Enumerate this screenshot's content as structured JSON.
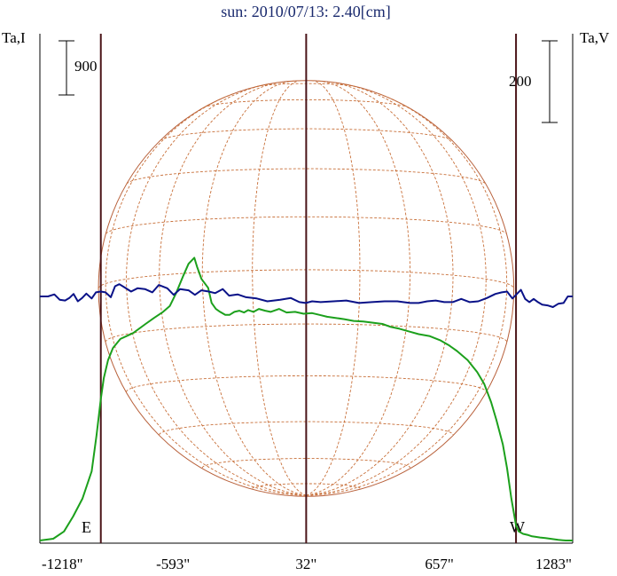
{
  "chart_data": {
    "type": "line",
    "title": "sun: 2010/07/13: 2.40[cm]",
    "left_axis_label": "Ta,I",
    "right_axis_label": "Ta,V",
    "left_scale_bar_label": "900",
    "right_scale_bar_label": "200",
    "x_unit": "arcsec",
    "x_tick_labels": [
      "-1218\"",
      "-593\"",
      "32\"",
      "657\"",
      "1283\""
    ],
    "x_ticks": [
      -1218,
      -593,
      32,
      657,
      1283
    ],
    "xlim": [
      -1218,
      1283
    ],
    "limb_labels": {
      "east": "E",
      "west": "W"
    },
    "limb_positions": [
      -932,
      1017
    ],
    "center_line": 32,
    "disk": {
      "center_x": 32,
      "radius": 975
    },
    "colors": {
      "intensity": "#1ca01c",
      "polarization": "#0a1288",
      "limb_lines": "#4a1418",
      "disk": "#b8603a",
      "grid": "#c8703a",
      "text": "#000000",
      "title": "#1a2a6e",
      "axis": "#000000"
    },
    "series": [
      {
        "name": "Ta,I",
        "x": [
          -1218,
          -1155,
          -1105,
          -1062,
          -1018,
          -975,
          -952,
          -932,
          -918,
          -898,
          -875,
          -840,
          -780,
          -722,
          -682,
          -640,
          -608,
          -580,
          -545,
          -520,
          -493,
          -480,
          -460,
          -428,
          -412,
          -392,
          -372,
          -348,
          -328,
          -305,
          -282,
          -260,
          -240,
          -215,
          -190,
          -160,
          -135,
          -95,
          -60,
          -20,
          20,
          60,
          95,
          130,
          170,
          210,
          255,
          300,
          345,
          390,
          430,
          470,
          520,
          560,
          610,
          660,
          700,
          740,
          790,
          835,
          868,
          900,
          925,
          955,
          975,
          995,
          1017,
          1030,
          1050,
          1075,
          1092,
          1110,
          1130,
          1155,
          1185,
          1215,
          1250,
          1283
        ],
        "values": [
          0,
          30,
          150,
          400,
          700,
          1150,
          1750,
          2350,
          2700,
          3000,
          3200,
          3350,
          3450,
          3600,
          3700,
          3800,
          3900,
          4100,
          4400,
          4600,
          4700,
          4550,
          4350,
          4200,
          3950,
          3850,
          3800,
          3750,
          3750,
          3800,
          3820,
          3790,
          3830,
          3800,
          3850,
          3820,
          3800,
          3850,
          3790,
          3800,
          3770,
          3780,
          3750,
          3720,
          3700,
          3680,
          3650,
          3640,
          3620,
          3600,
          3550,
          3520,
          3470,
          3430,
          3400,
          3330,
          3250,
          3150,
          3000,
          2800,
          2600,
          2300,
          2000,
          1600,
          1200,
          700,
          250,
          150,
          110,
          90,
          70,
          60,
          50,
          40,
          25,
          10,
          0,
          0
        ]
      },
      {
        "name": "Ta,V",
        "x": [
          -1218,
          -1180,
          -1150,
          -1125,
          -1100,
          -1080,
          -1060,
          -1040,
          -1020,
          -1000,
          -975,
          -955,
          -932,
          -910,
          -885,
          -865,
          -845,
          -820,
          -790,
          -760,
          -725,
          -690,
          -660,
          -620,
          -590,
          -560,
          -520,
          -490,
          -460,
          -425,
          -395,
          -360,
          -330,
          -290,
          -250,
          -200,
          -150,
          -90,
          -40,
          0,
          30,
          60,
          100,
          160,
          220,
          280,
          340,
          400,
          460,
          520,
          560,
          600,
          640,
          680,
          720,
          760,
          800,
          840,
          880,
          920,
          950,
          975,
          1000,
          1017,
          1040,
          1060,
          1080,
          1100,
          1120,
          1140,
          1165,
          1190,
          1215,
          1240,
          1260,
          1283
        ],
        "values": [
          0,
          0,
          5,
          -8,
          -10,
          -4,
          6,
          -12,
          -4,
          7,
          -5,
          10,
          12,
          10,
          -2,
          25,
          30,
          22,
          12,
          20,
          18,
          10,
          28,
          20,
          4,
          18,
          15,
          4,
          15,
          12,
          8,
          18,
          2,
          5,
          -2,
          -5,
          -12,
          -8,
          -4,
          -14,
          -16,
          -12,
          -14,
          -12,
          -10,
          -16,
          -14,
          -12,
          -12,
          -16,
          -16,
          -12,
          -10,
          -14,
          -14,
          -6,
          -14,
          -12,
          -4,
          6,
          10,
          12,
          -5,
          4,
          16,
          -6,
          -14,
          -6,
          -14,
          -20,
          -22,
          -26,
          -18,
          -16,
          0,
          0
        ]
      }
    ],
    "left_scale_bar_value": 900,
    "right_scale_bar_value": 200,
    "grid": true
  }
}
